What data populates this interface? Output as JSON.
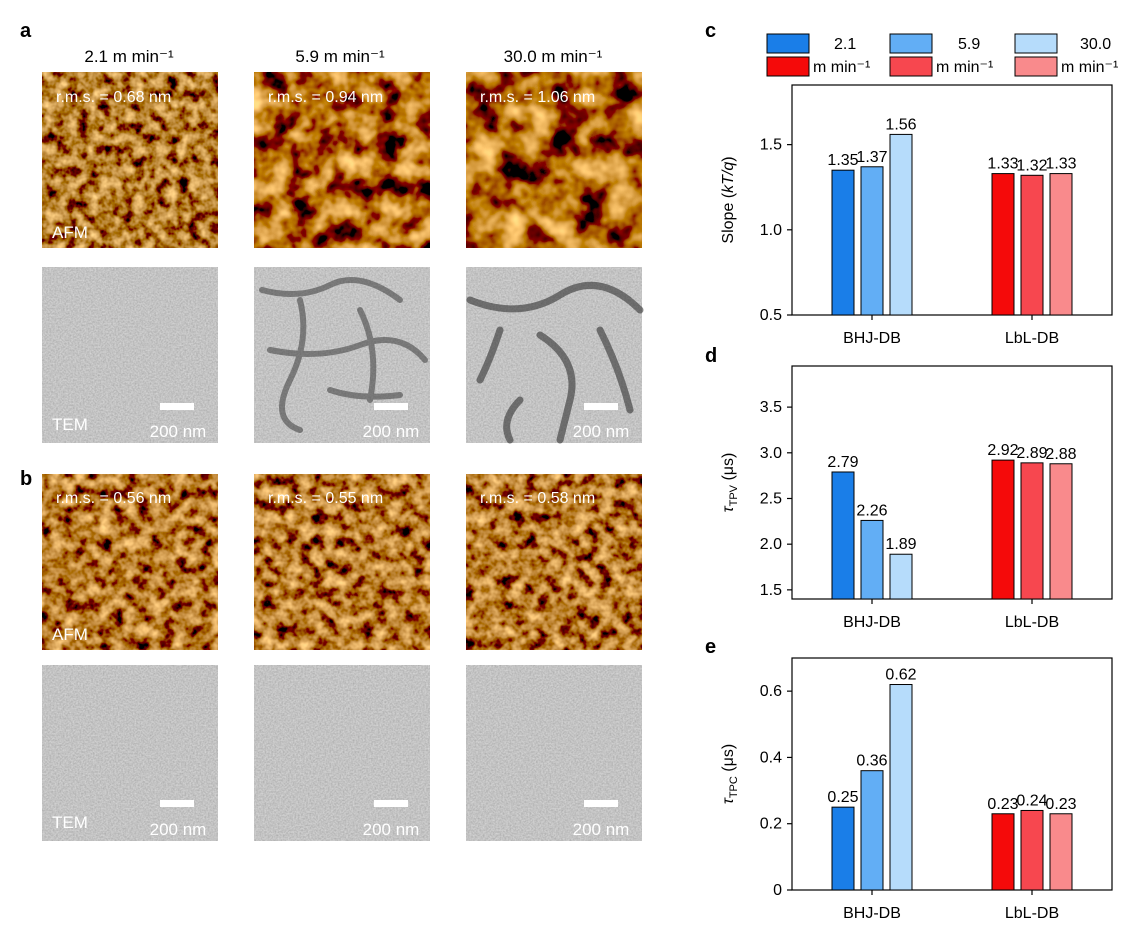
{
  "figure": {
    "panel_labels": [
      "a",
      "b",
      "c",
      "d",
      "e"
    ],
    "column_headers": [
      "2.1 m min⁻¹",
      "5.9 m min⁻¹",
      "30.0 m min⁻¹"
    ],
    "panel_a": {
      "rms": [
        "r.m.s. = 0.68 nm",
        "r.m.s. = 0.94 nm",
        "r.m.s. = 1.06 nm"
      ],
      "afm_label": "AFM",
      "tem_label": "TEM",
      "scale_bar": "200 nm"
    },
    "panel_b": {
      "rms": [
        "r.m.s. = 0.56 nm",
        "r.m.s. = 0.55 nm",
        "r.m.s. = 0.58 nm"
      ],
      "afm_label": "AFM",
      "tem_label": "TEM",
      "scale_bar": "200 nm"
    },
    "legend": {
      "entries": [
        "2.1",
        "5.9",
        "30.0"
      ],
      "unit": "m min⁻¹",
      "blue_colors": [
        "#1a7ee8",
        "#62aef5",
        "#b6dcfb"
      ],
      "red_colors": [
        "#f50a0a",
        "#f7474f",
        "#f98a8c"
      ]
    },
    "colors": {
      "blue": [
        "#1a7ee8",
        "#62aef5",
        "#b6dcfb"
      ],
      "red": [
        "#f50a0a",
        "#f7474f",
        "#f98a8c"
      ],
      "afm_dark": "#2a0e00",
      "afm_bright": "#ffe08a",
      "tem_base": "#8a8a8a"
    }
  },
  "chart_data": [
    {
      "panel": "c",
      "type": "bar",
      "categories": [
        "BHJ-DB",
        "LbL-DB"
      ],
      "series": [
        {
          "values": [
            1.35,
            1.33
          ]
        },
        {
          "values": [
            1.37,
            1.32
          ]
        },
        {
          "values": [
            1.56,
            1.33
          ]
        }
      ],
      "value_labels": [
        [
          "1.35",
          "1.37",
          "1.56"
        ],
        [
          "1.33",
          "1.32",
          "1.33"
        ]
      ],
      "ylabel": "Slope (kT/q)",
      "ylim": [
        0.5,
        1.85
      ],
      "yticks": [
        "0.5",
        "1.0",
        "1.5"
      ],
      "ytick_values": [
        0.5,
        1.0,
        1.5
      ]
    },
    {
      "panel": "d",
      "type": "bar",
      "categories": [
        "BHJ-DB",
        "LbL-DB"
      ],
      "series": [
        {
          "values": [
            2.79,
            2.92
          ]
        },
        {
          "values": [
            2.26,
            2.89
          ]
        },
        {
          "values": [
            1.89,
            2.88
          ]
        }
      ],
      "value_labels": [
        [
          "2.79",
          "2.26",
          "1.89"
        ],
        [
          "2.92",
          "2.89",
          "2.88"
        ]
      ],
      "ylabel": "τTPV (μs)",
      "ylim": [
        1.4,
        3.95
      ],
      "yticks": [
        "1.5",
        "2.0",
        "2.5",
        "3.0",
        "3.5"
      ],
      "ytick_values": [
        1.5,
        2.0,
        2.5,
        3.0,
        3.5
      ]
    },
    {
      "panel": "e",
      "type": "bar",
      "categories": [
        "BHJ-DB",
        "LbL-DB"
      ],
      "series": [
        {
          "values": [
            0.25,
            0.23
          ]
        },
        {
          "values": [
            0.36,
            0.24
          ]
        },
        {
          "values": [
            0.62,
            0.23
          ]
        }
      ],
      "value_labels": [
        [
          "0.25",
          "0.36",
          "0.62"
        ],
        [
          "0.23",
          "0.24",
          "0.23"
        ]
      ],
      "ylabel": "τTPC (μs)",
      "ylim": [
        0,
        0.7
      ],
      "yticks": [
        "0",
        "0.2",
        "0.4",
        "0.6"
      ],
      "ytick_values": [
        0,
        0.2,
        0.4,
        0.6
      ]
    }
  ]
}
